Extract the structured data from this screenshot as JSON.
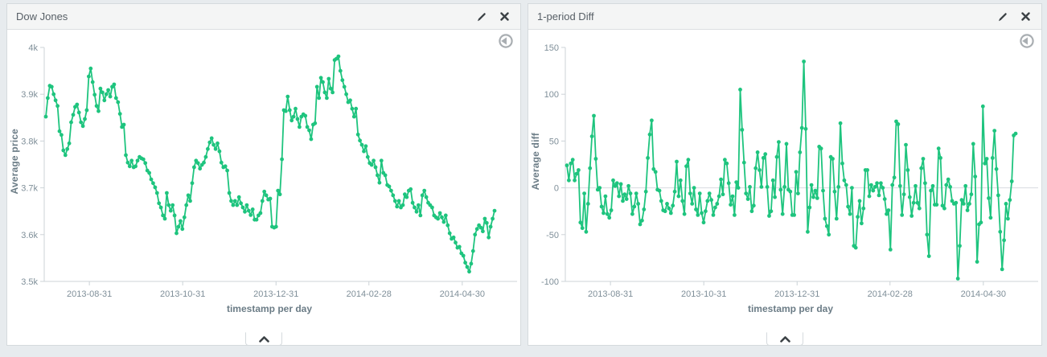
{
  "page": {
    "background": "#e7ebee",
    "accent_green": "#1ec47e"
  },
  "panels": [
    {
      "title": "Dow Jones",
      "icons": [
        "pencil-icon",
        "close-icon",
        "back-arrow-icon",
        "chevron-up-icon"
      ]
    },
    {
      "title": "1-period Diff",
      "icons": [
        "pencil-icon",
        "close-icon",
        "back-arrow-icon",
        "chevron-up-icon"
      ]
    }
  ],
  "chart_data": [
    {
      "type": "line",
      "title": "Dow Jones",
      "xlabel": "timestamp per day",
      "ylabel": "Average price",
      "legend": "none",
      "grid": "axis-only",
      "marker": "circle",
      "color": "#1ec47e",
      "ylim": [
        3500,
        4000
      ],
      "y_ticks": [
        {
          "label": "4k",
          "value": 4000
        },
        {
          "label": "3.9k",
          "value": 3900
        },
        {
          "label": "3.8k",
          "value": 3800
        },
        {
          "label": "3.7k",
          "value": 3700
        },
        {
          "label": "3.6k",
          "value": 3600
        },
        {
          "label": "3.5k",
          "value": 3500
        }
      ],
      "x_ticks": [
        {
          "label": "2013-08-31",
          "pos": 0.097
        },
        {
          "label": "2013-10-31",
          "pos": 0.305
        },
        {
          "label": "2013-12-31",
          "pos": 0.513
        },
        {
          "label": "2014-02-28",
          "pos": 0.72
        },
        {
          "label": "2014-04-30",
          "pos": 0.928
        }
      ],
      "zero_line": false,
      "values": [
        3852,
        3892,
        3918,
        3916,
        3900,
        3887,
        3875,
        3821,
        3813,
        3780,
        3770,
        3783,
        3795,
        3840,
        3856,
        3873,
        3878,
        3861,
        3840,
        3832,
        3847,
        3866,
        3938,
        3955,
        3926,
        3899,
        3875,
        3864,
        3912,
        3904,
        3887,
        3900,
        3909,
        3895,
        3916,
        3921,
        3892,
        3883,
        3858,
        3830,
        3835,
        3770,
        3754,
        3746,
        3758,
        3744,
        3746,
        3758,
        3766,
        3763,
        3761,
        3753,
        3737,
        3732,
        3718,
        3710,
        3701,
        3689,
        3667,
        3658,
        3641,
        3634,
        3689,
        3663,
        3651,
        3663,
        3641,
        3603,
        3617,
        3629,
        3612,
        3637,
        3663,
        3684,
        3672,
        3710,
        3744,
        3758,
        3753,
        3741,
        3749,
        3754,
        3766,
        3783,
        3797,
        3806,
        3792,
        3783,
        3795,
        3778,
        3754,
        3744,
        3746,
        3737,
        3689,
        3672,
        3663,
        3672,
        3663,
        3680,
        3667,
        3658,
        3649,
        3663,
        3651,
        3642,
        3654,
        3632,
        3632,
        3641,
        3646,
        3672,
        3692,
        3684,
        3675,
        3677,
        3617,
        3615,
        3617,
        3694,
        3686,
        3761,
        3866,
        3864,
        3895,
        3866,
        3844,
        3852,
        3869,
        3847,
        3830,
        3852,
        3857,
        3854,
        3830,
        3823,
        3804,
        3835,
        3838,
        3916,
        3892,
        3935,
        3926,
        3904,
        3892,
        3933,
        3912,
        3904,
        3973,
        3976,
        3981,
        3950,
        3930,
        3916,
        3900,
        3883,
        3887,
        3869,
        3852,
        3869,
        3814,
        3801,
        3792,
        3778,
        3789,
        3766,
        3753,
        3749,
        3758,
        3744,
        3727,
        3711,
        3758,
        3732,
        3727,
        3706,
        3703,
        3694,
        3684,
        3672,
        3660,
        3672,
        3658,
        3663,
        3686,
        3680,
        3694,
        3697,
        3668,
        3658,
        3649,
        3663,
        3641,
        3684,
        3694,
        3680,
        3668,
        3663,
        3658,
        3641,
        3637,
        3634,
        3646,
        3637,
        3627,
        3641,
        3620,
        3603,
        3591,
        3594,
        3583,
        3572,
        3574,
        3560,
        3555,
        3540,
        3531,
        3521,
        3538,
        3565,
        3600,
        3612,
        3620,
        3615,
        3607,
        3634,
        3625,
        3594,
        3617,
        3634,
        3651
      ]
    },
    {
      "type": "line",
      "title": "1-period Diff",
      "xlabel": "timestamp per day",
      "ylabel": "Average diff",
      "legend": "none",
      "grid": "zero-line",
      "marker": "circle",
      "color": "#1ec47e",
      "ylim": [
        -100,
        150
      ],
      "y_ticks": [
        {
          "label": "150",
          "value": 150
        },
        {
          "label": "100",
          "value": 100
        },
        {
          "label": "50",
          "value": 50
        },
        {
          "label": "0",
          "value": 0
        },
        {
          "label": "-50",
          "value": -50
        },
        {
          "label": "-100",
          "value": -100
        }
      ],
      "x_ticks": [
        {
          "label": "2013-08-31",
          "pos": 0.097
        },
        {
          "label": "2013-10-31",
          "pos": 0.305
        },
        {
          "label": "2013-12-31",
          "pos": 0.513
        },
        {
          "label": "2014-02-28",
          "pos": 0.72
        },
        {
          "label": "2014-04-30",
          "pos": 0.928
        }
      ],
      "zero_line": true,
      "values": [
        24,
        8,
        26,
        30,
        8,
        15,
        19,
        -37,
        -43,
        -6,
        -47,
        -17,
        21,
        55,
        77,
        31,
        -2,
        0,
        -20,
        -27,
        -9,
        -28,
        -32,
        -24,
        8,
        2,
        5,
        -9,
        4,
        -14,
        -7,
        -12,
        2,
        -6,
        -28,
        -20,
        -6,
        -17,
        -39,
        -35,
        -23,
        -4,
        32,
        57,
        72,
        20,
        17,
        -2,
        -3,
        -14,
        -24,
        -25,
        -17,
        -22,
        -27,
        -19,
        -4,
        28,
        -9,
        8,
        -14,
        -28,
        23,
        30,
        -6,
        -17,
        0,
        -23,
        -29,
        -6,
        -27,
        -37,
        -25,
        -14,
        -6,
        -13,
        -29,
        -21,
        -17,
        -9,
        9,
        -7,
        30,
        26,
        5,
        -18,
        -9,
        -29,
        6,
        0,
        105,
        62,
        27,
        -6,
        -12,
        1,
        -25,
        -19,
        21,
        38,
        19,
        1,
        32,
        36,
        1,
        -30,
        -25,
        8,
        -10,
        33,
        49,
        -2,
        -28,
        1,
        47,
        -2,
        -4,
        -29,
        -29,
        17,
        -6,
        38,
        64,
        135,
        63,
        -47,
        -21,
        3,
        -10,
        -3,
        -11,
        44,
        42,
        -3,
        -33,
        -41,
        -50,
        33,
        31,
        -4,
        -33,
        1,
        69,
        26,
        8,
        3,
        -20,
        -28,
        0,
        -62,
        -64,
        -31,
        -14,
        -38,
        -22,
        19,
        19,
        -9,
        3,
        -3,
        1,
        5,
        -8,
        5,
        0,
        -12,
        -28,
        -24,
        -66,
        3,
        11,
        71,
        68,
        2,
        -29,
        -7,
        46,
        19,
        -10,
        -30,
        -16,
        2,
        -16,
        -22,
        21,
        31,
        5,
        -50,
        -73,
        -3,
        2,
        -18,
        -18,
        42,
        32,
        -19,
        -22,
        3,
        9,
        1,
        -14,
        -17,
        -16,
        -97,
        -62,
        -13,
        -17,
        2,
        -24,
        -17,
        -7,
        47,
        12,
        -79,
        -39,
        -37,
        87,
        26,
        31,
        -11,
        -32,
        32,
        61,
        20,
        -8,
        -47,
        -87,
        -56,
        -17,
        -33,
        -13,
        7,
        56,
        58
      ]
    }
  ]
}
